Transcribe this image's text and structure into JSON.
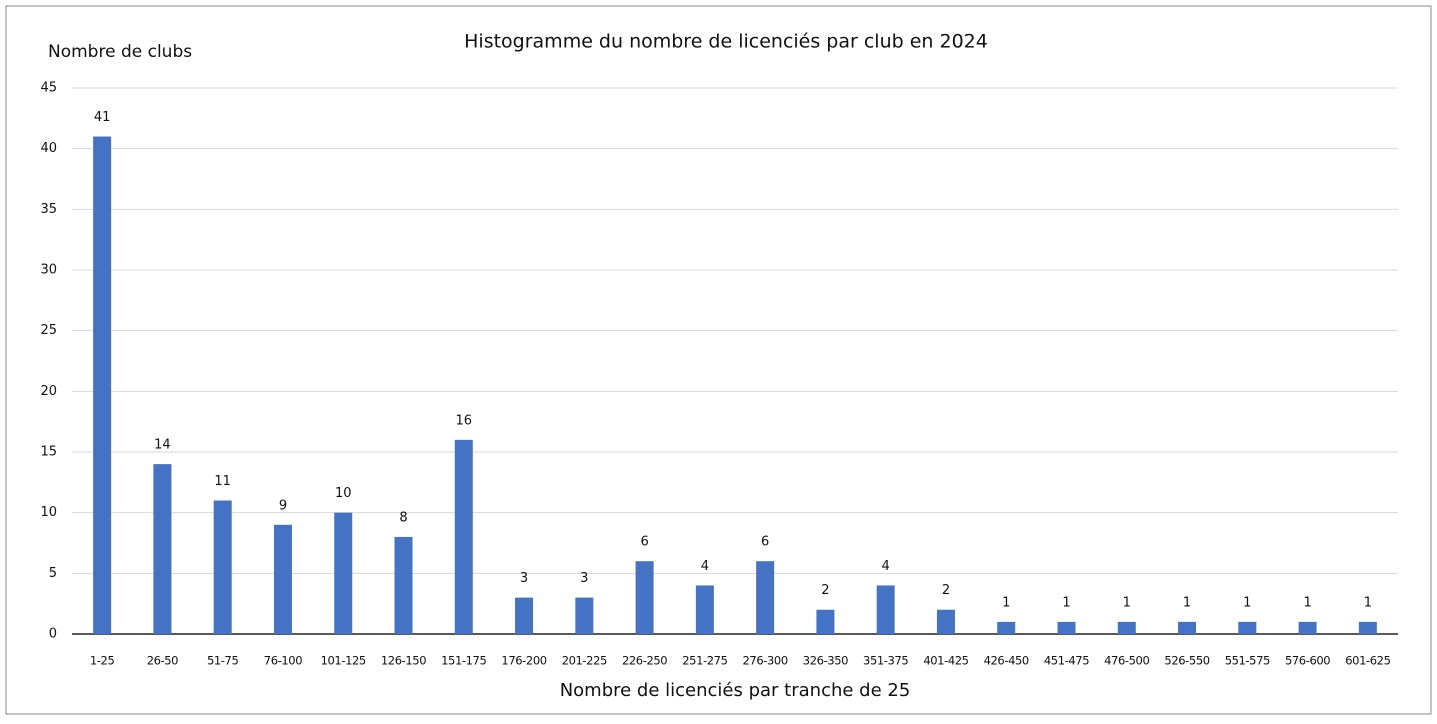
{
  "chart_data": {
    "type": "bar",
    "title": "Histogramme du nombre de licenciés par club en 2024",
    "y_label": "Nombre de clubs",
    "x_label": "Nombre de licenciés par tranche de 25",
    "categories": [
      "1-25",
      "26-50",
      "51-75",
      "76-100",
      "101-125",
      "126-150",
      "151-175",
      "176-200",
      "201-225",
      "226-250",
      "251-275",
      "276-300",
      "326-350",
      "351-375",
      "401-425",
      "426-450",
      "451-475",
      "476-500",
      "526-550",
      "551-575",
      "576-600",
      "601-625"
    ],
    "values": [
      41,
      14,
      11,
      9,
      10,
      8,
      16,
      3,
      3,
      6,
      4,
      6,
      2,
      4,
      2,
      1,
      1,
      1,
      1,
      1,
      1,
      1
    ],
    "color": "#4472c4",
    "ylim": [
      0,
      45
    ],
    "yticks": [
      0,
      5,
      10,
      15,
      20,
      25,
      30,
      35,
      40,
      45
    ],
    "grid": true
  }
}
